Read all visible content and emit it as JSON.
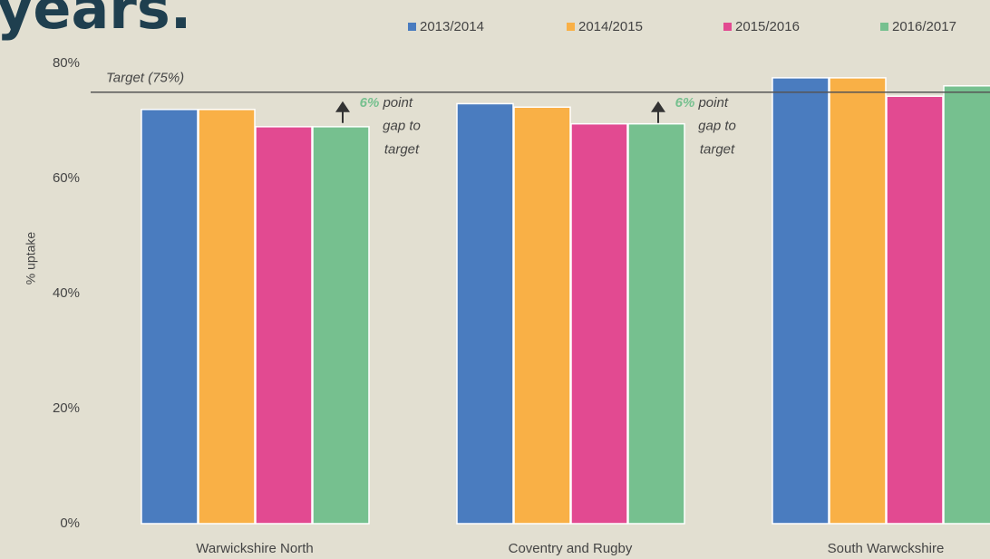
{
  "chart_data": {
    "type": "bar",
    "title": "years.",
    "y_label": "% uptake",
    "categories": [
      "Warwickshire North",
      "Coventry and Rugby",
      "South Warwckshire"
    ],
    "series": [
      {
        "name": "2013/2014",
        "color": "#4a7cbf",
        "values": [
          72,
          73,
          77.5
        ]
      },
      {
        "name": "2014/2015",
        "color": "#f9b046",
        "values": [
          72,
          72.4,
          77.5
        ]
      },
      {
        "name": "2015/2016",
        "color": "#e24a91",
        "values": [
          69,
          69.5,
          74.3
        ]
      },
      {
        "name": "2016/2017",
        "color": "#76c08f",
        "values": [
          69,
          69.5,
          76.1
        ]
      }
    ],
    "ylim": [
      0,
      80
    ],
    "yticks": [
      {
        "value": 0,
        "label": "0%"
      },
      {
        "value": 20,
        "label": "20%"
      },
      {
        "value": 40,
        "label": "40%"
      },
      {
        "value": 60,
        "label": "60%"
      },
      {
        "value": 80,
        "label": "80%"
      }
    ],
    "target": {
      "value": 75,
      "label": "Target (75%)"
    },
    "annotations": [
      {
        "highlight": "6%",
        "lines": [
          "point",
          "gap to",
          "target"
        ]
      },
      {
        "highlight": "6%",
        "lines": [
          "point",
          "gap to",
          "target"
        ]
      }
    ],
    "grid": false
  }
}
